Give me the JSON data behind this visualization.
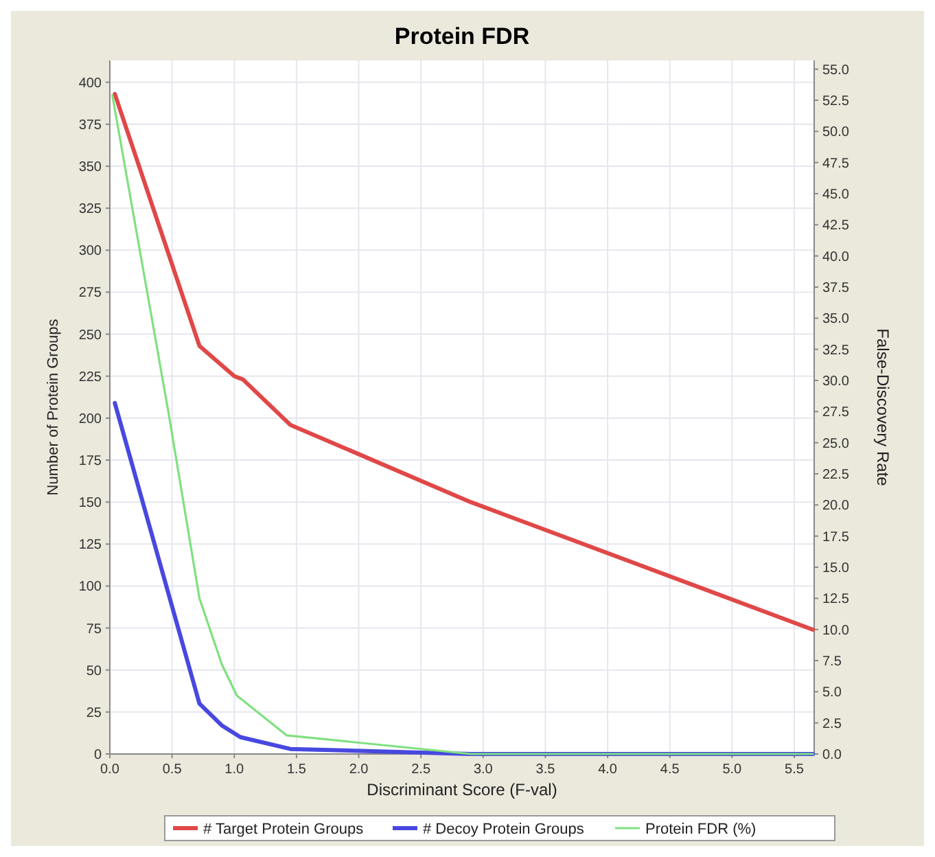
{
  "chart_data": {
    "type": "line",
    "title": "Protein FDR",
    "xlabel": "Discriminant Score (F-val)",
    "ylabel": "Number of Protein Groups",
    "y2label": "False-Discovery Rate",
    "xlim": [
      0,
      5.66
    ],
    "ylim": [
      0,
      413
    ],
    "y2lim": [
      0,
      55.7
    ],
    "xticks": [
      {
        "value": 0,
        "label": "0.0"
      },
      0.5,
      {
        "value": 1,
        "label": "1.0"
      },
      1.5,
      {
        "value": 2,
        "label": "2.0"
      },
      2.5,
      {
        "value": 3,
        "label": "3.0"
      },
      3.5,
      {
        "value": 4,
        "label": "4.0"
      },
      4.5,
      {
        "value": 5,
        "label": "5.0"
      },
      5.5
    ],
    "yticks": [
      0,
      25,
      50,
      75,
      100,
      125,
      150,
      175,
      200,
      225,
      250,
      275,
      300,
      325,
      350,
      375,
      400
    ],
    "y2ticks": [
      {
        "value": 0,
        "label": "0.0"
      },
      2.5,
      {
        "value": 5,
        "label": "5.0"
      },
      7.5,
      {
        "value": 10,
        "label": "10.0"
      },
      12.5,
      {
        "value": 15,
        "label": "15.0"
      },
      17.5,
      {
        "value": 20,
        "label": "20.0"
      },
      22.5,
      {
        "value": 25,
        "label": "25.0"
      },
      27.5,
      {
        "value": 30,
        "label": "30.0"
      },
      32.5,
      {
        "value": 35,
        "label": "35.0"
      },
      37.5,
      {
        "value": 40,
        "label": "40.0"
      },
      42.5,
      {
        "value": 45,
        "label": "45.0"
      },
      47.5,
      {
        "value": 50,
        "label": "50.0"
      },
      52.5,
      {
        "value": 55,
        "label": "55.0"
      }
    ],
    "grid": true,
    "legend": "bottom",
    "marker": "none",
    "line_style": "solid",
    "series": [
      {
        "name": "# Target Protein Groups",
        "color": "#e04848",
        "x": [
          0.04,
          0.72,
          1.0,
          1.07,
          1.45,
          2.9,
          5.65
        ],
        "values": [
          393,
          243,
          225,
          223,
          196,
          150,
          74
        ]
      },
      {
        "name": "# Decoy Protein Groups",
        "color": "#4848e0",
        "x": [
          0.04,
          0.72,
          0.9,
          1.05,
          1.45,
          2.9,
          5.65
        ],
        "values": [
          209,
          30,
          17,
          10,
          3,
          0,
          0
        ]
      },
      {
        "name": "Protein FDR (%)",
        "color": "#80e080",
        "axis": "y2",
        "x": [
          0.02,
          0.47,
          0.72,
          0.9,
          1.02,
          1.42,
          2.9,
          5.65
        ],
        "values": [
          52.9,
          27.5,
          12.5,
          7.2,
          4.7,
          1.5,
          0,
          0
        ]
      }
    ]
  }
}
